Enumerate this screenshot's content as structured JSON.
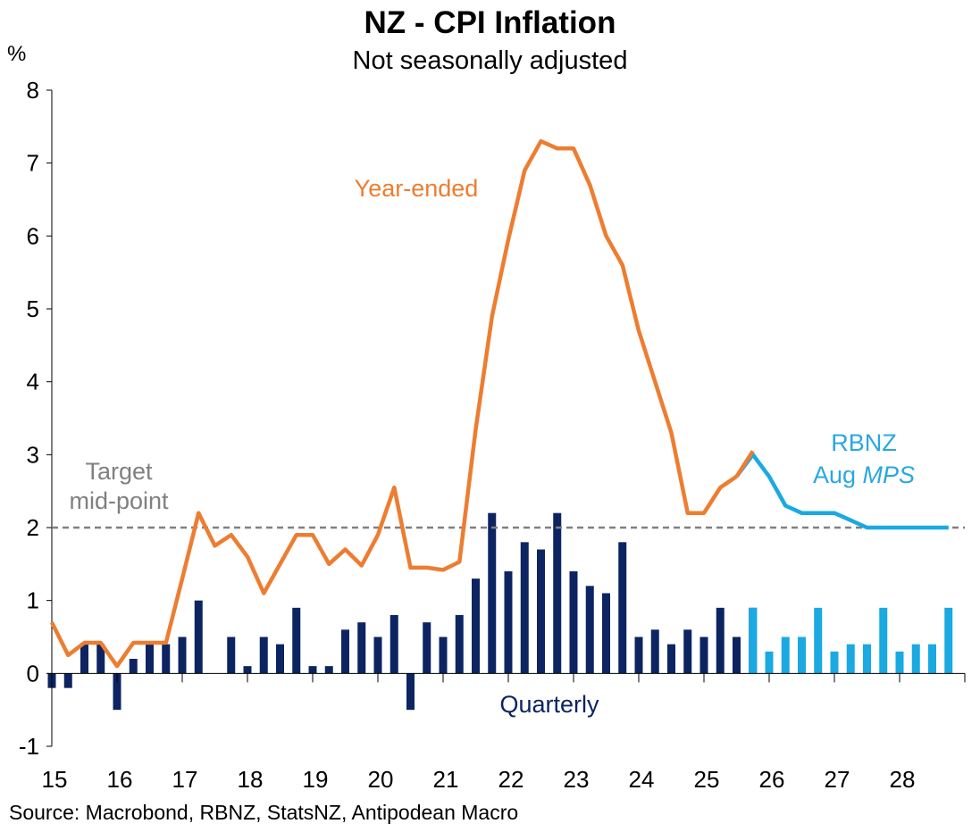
{
  "chart_data": {
    "type": "bar+line",
    "title": "NZ - CPI Inflation",
    "subtitle": "Not seasonally adjusted",
    "ylabel": "%",
    "ylim": [
      -1,
      8
    ],
    "yticks": [
      "8",
      "7",
      "6",
      "5",
      "4",
      "3",
      "2",
      "1",
      "0",
      "-1"
    ],
    "xlim": [
      2015,
      2029
    ],
    "xticks": [
      "15",
      "16",
      "17",
      "18",
      "19",
      "20",
      "21",
      "22",
      "23",
      "24",
      "25",
      "26",
      "27",
      "28"
    ],
    "source": "Source: Macrobond, RBNZ, StatsNZ, Antipodean Macro",
    "target": {
      "label_line1": "Target",
      "label_line2": "mid-point",
      "value": 2
    },
    "annotations": {
      "year_ended": "Year-ended",
      "quarterly": "Quarterly",
      "rbnz_line1": "RBNZ",
      "rbnz_line2_prefix": "Aug ",
      "rbnz_line2_italic": "MPS"
    },
    "colors": {
      "year_ended": "#ED7D31",
      "quarterly": "#0C2461",
      "rbnz": "#1BA9E1",
      "target": "#808080",
      "rbnz_text": "#29A8E0",
      "target_text": "#808080"
    },
    "series": [
      {
        "name": "Year-ended",
        "x": [
          2015.0,
          2015.25,
          2015.5,
          2015.75,
          2016.0,
          2016.25,
          2016.5,
          2016.75,
          2017.0,
          2017.25,
          2017.5,
          2017.75,
          2018.0,
          2018.25,
          2018.5,
          2018.75,
          2019.0,
          2019.25,
          2019.5,
          2019.75,
          2020.0,
          2020.25,
          2020.5,
          2020.75,
          2021.0,
          2021.25,
          2021.5,
          2021.75,
          2022.0,
          2022.25,
          2022.5,
          2022.75,
          2023.0,
          2023.25,
          2023.5,
          2023.75,
          2024.0,
          2024.25,
          2024.5,
          2024.75,
          2025.0,
          2025.25,
          2025.5
        ],
        "values": [
          0.7,
          0.25,
          0.42,
          0.42,
          0.1,
          0.42,
          0.42,
          0.42,
          1.3,
          2.2,
          1.75,
          1.9,
          1.6,
          1.1,
          1.5,
          1.9,
          1.9,
          1.5,
          1.7,
          1.48,
          1.9,
          2.55,
          1.45,
          1.45,
          1.42,
          1.53,
          3.35,
          4.9,
          5.95,
          6.9,
          7.3,
          7.2,
          7.2,
          6.7,
          6.0,
          5.6,
          4.7,
          4.0,
          3.3,
          2.2,
          2.2,
          2.55,
          2.7
        ],
        "x_b": [
          2025.5,
          2025.75
        ],
        "values_b": [
          2.7,
          3.05
        ]
      },
      {
        "name": "RBNZ Aug MPS",
        "x": [
          2025.5,
          2025.75,
          2026.0,
          2026.25,
          2026.5,
          2026.75,
          2027.0,
          2027.25,
          2027.5,
          2027.75,
          2028.0,
          2028.25,
          2028.5,
          2028.75
        ],
        "values": [
          2.7,
          3.0,
          2.7,
          2.3,
          2.2,
          2.2,
          2.2,
          2.1,
          2.0,
          2.0,
          2.0,
          2.0,
          2.0,
          2.0
        ]
      },
      {
        "name": "Quarterly",
        "x": [
          2015.0,
          2015.25,
          2015.5,
          2015.75,
          2016.0,
          2016.25,
          2016.5,
          2016.75,
          2017.0,
          2017.25,
          2017.5,
          2017.75,
          2018.0,
          2018.25,
          2018.5,
          2018.75,
          2019.0,
          2019.25,
          2019.5,
          2019.75,
          2020.0,
          2020.25,
          2020.5,
          2020.75,
          2021.0,
          2021.25,
          2021.5,
          2021.75,
          2022.0,
          2022.25,
          2022.5,
          2022.75,
          2023.0,
          2023.25,
          2023.5,
          2023.75,
          2024.0,
          2024.25,
          2024.5,
          2024.75,
          2025.0,
          2025.25,
          2025.5,
          2025.75
        ],
        "values": [
          -0.2,
          -0.2,
          0.4,
          0.4,
          -0.5,
          0.2,
          0.4,
          0.4,
          0.5,
          1.0,
          0.0,
          0.5,
          0.1,
          0.5,
          0.4,
          0.9,
          0.1,
          0.1,
          0.6,
          0.7,
          0.5,
          0.8,
          -0.5,
          0.7,
          0.5,
          0.8,
          1.3,
          2.2,
          1.4,
          1.8,
          1.7,
          2.2,
          1.4,
          1.2,
          1.1,
          1.8,
          0.5,
          0.6,
          0.4,
          0.6,
          0.5,
          0.9,
          0.5,
          0.9
        ]
      },
      {
        "name": "RBNZ Aug MPS quarterly",
        "x": [
          2025.75,
          2026.0,
          2026.25,
          2026.5,
          2026.75,
          2027.0,
          2027.25,
          2027.5,
          2027.75,
          2028.0,
          2028.25,
          2028.5,
          2028.75
        ],
        "values": [
          0.9,
          0.3,
          0.5,
          0.5,
          0.9,
          0.3,
          0.4,
          0.4,
          0.9,
          0.3,
          0.4,
          0.4,
          0.9
        ]
      }
    ]
  }
}
